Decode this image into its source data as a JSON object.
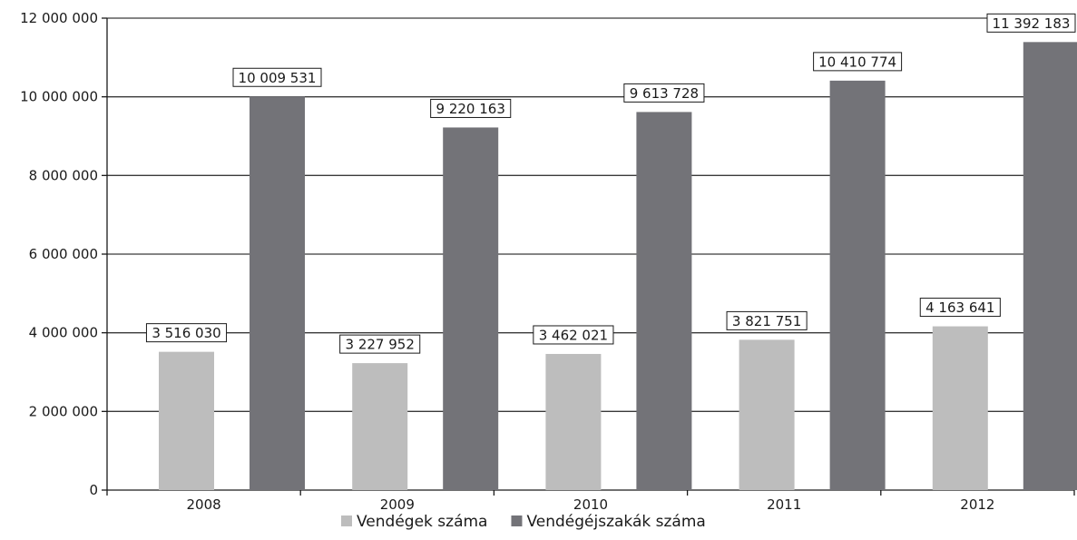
{
  "chart_data": {
    "type": "bar",
    "categories": [
      "2008",
      "2009",
      "2010",
      "2011",
      "2012"
    ],
    "series": [
      {
        "name": "Vendégek száma",
        "values": [
          3516030,
          3227952,
          3462021,
          3821751,
          4163641
        ],
        "labels": [
          "3 516 030",
          "3 227 952",
          "3 462 021",
          "3 821 751",
          "4 163 641"
        ],
        "color": "#bdbdbd"
      },
      {
        "name": "Vendégéjszakák száma",
        "values": [
          10009531,
          9220163,
          9613728,
          10410774,
          11392183
        ],
        "labels": [
          "10 009 531",
          "9 220 163",
          "9 613 728",
          "10 410 774",
          "11 392 183"
        ],
        "color": "#737378"
      }
    ],
    "yticks": [
      "0",
      "2 000 000",
      "4 000 000",
      "6 000 000",
      "8 000 000",
      "10 000 000",
      "12 000 000"
    ],
    "ylim": [
      0,
      12000000
    ],
    "grid": true,
    "legend_position": "bottom"
  }
}
